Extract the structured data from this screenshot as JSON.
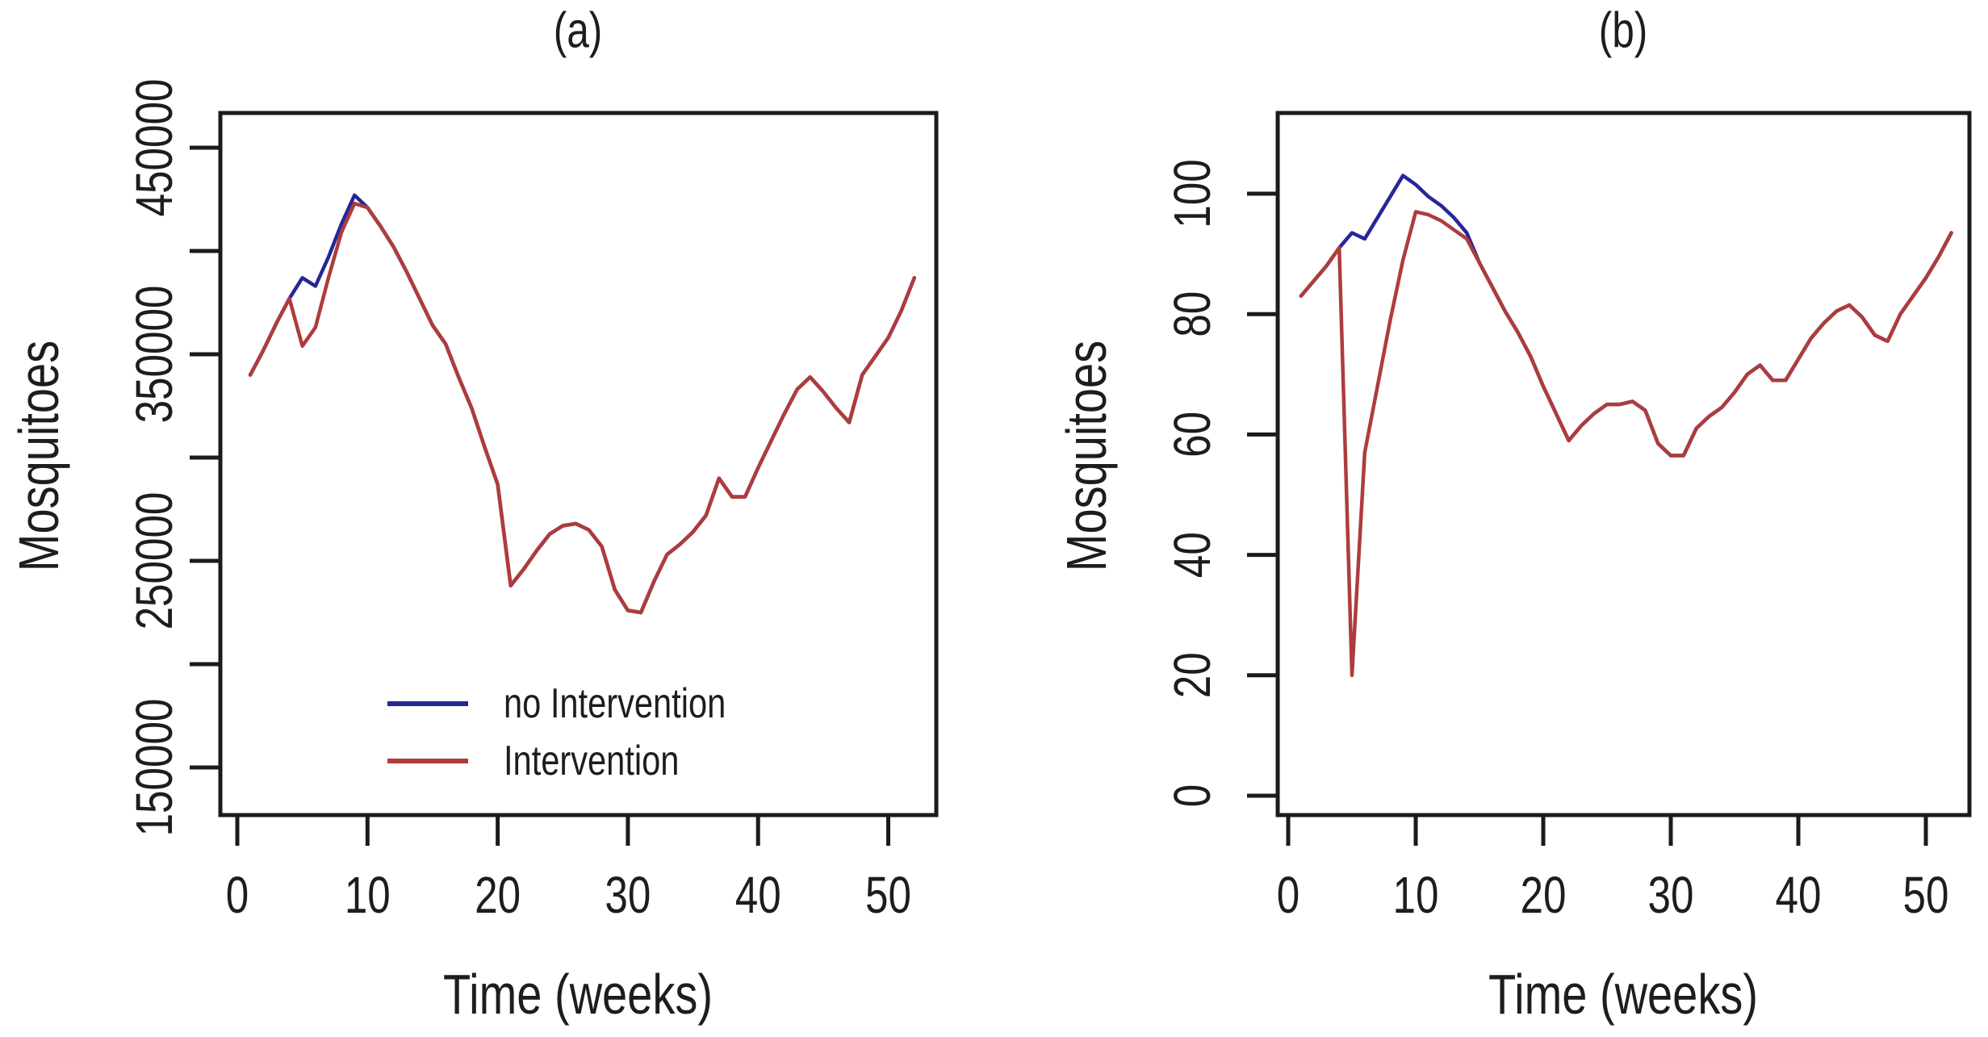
{
  "figure": {
    "background": "#ffffff",
    "axis_color": "#1b1b1b",
    "text_color": "#1d1d1d"
  },
  "chart_data": [
    {
      "type": "line",
      "panel": "a",
      "title": "(a)",
      "xlabel": "Time (weeks)",
      "ylabel": "Mosquitoes",
      "x_start_week": 1,
      "xlim": [
        0,
        53
      ],
      "ylim": [
        150000,
        470000
      ],
      "grid": "off",
      "legend_position": "inside bottom-left",
      "xticks": [
        0,
        10,
        20,
        30,
        40,
        50
      ],
      "yticks": [
        {
          "value": 450000,
          "label": "450000"
        },
        {
          "value": 400000,
          "label": ""
        },
        {
          "value": 350000,
          "label": "350000"
        },
        {
          "value": 300000,
          "label": ""
        },
        {
          "value": 250000,
          "label": "250000"
        },
        {
          "value": 200000,
          "label": ""
        },
        {
          "value": 150000,
          "label": "150000"
        }
      ],
      "series": [
        {
          "name": "no Intervention",
          "color": "#26269B",
          "values": [
            340000,
            352000,
            365000,
            377000,
            387000,
            383000,
            397000,
            413000,
            427000,
            421000,
            412000,
            402000,
            390000,
            377000,
            364000,
            355000,
            339000,
            324000,
            305000,
            287000,
            238000,
            246000,
            255000,
            263000,
            267000,
            268000,
            265000,
            257000,
            236000,
            226000,
            225000,
            240000,
            253000,
            258000,
            264000,
            272000,
            290000,
            281000,
            281000,
            295000,
            308000,
            321000,
            333000,
            339000,
            332000,
            324000,
            317000,
            340000,
            349000,
            358000,
            371000,
            387000
          ]
        },
        {
          "name": "Intervention",
          "color": "#AE3C3C",
          "values": [
            340000,
            352000,
            365000,
            377000,
            354000,
            363000,
            387000,
            409000,
            423000,
            421000,
            412000,
            402000,
            390000,
            377000,
            364000,
            355000,
            339000,
            324000,
            305000,
            287000,
            238000,
            246000,
            255000,
            263000,
            267000,
            268000,
            265000,
            257000,
            236000,
            226000,
            225000,
            240000,
            253000,
            258000,
            264000,
            272000,
            290000,
            281000,
            281000,
            295000,
            308000,
            321000,
            333000,
            339000,
            332000,
            324000,
            317000,
            340000,
            349000,
            358000,
            371000,
            387000
          ]
        }
      ]
    },
    {
      "type": "line",
      "panel": "b",
      "title": "(b)",
      "xlabel": "Time (weeks)",
      "ylabel": "Mosquitoes",
      "x_start_week": 1,
      "xlim": [
        0,
        53
      ],
      "ylim": [
        0,
        112
      ],
      "grid": "off",
      "legend_position": "none",
      "xticks": [
        0,
        10,
        20,
        30,
        40,
        50
      ],
      "yticks": [
        {
          "value": 100,
          "label": "100"
        },
        {
          "value": 80,
          "label": "80"
        },
        {
          "value": 60,
          "label": "60"
        },
        {
          "value": 40,
          "label": "40"
        },
        {
          "value": 20,
          "label": "20"
        },
        {
          "value": 0,
          "label": "0"
        }
      ],
      "series": [
        {
          "name": "no Intervention",
          "color": "#26269B",
          "values": [
            83,
            85.5,
            88,
            91,
            93.5,
            92.5,
            96,
            99.5,
            103,
            101.5,
            99.5,
            98,
            96,
            93.5,
            88.5,
            84.5,
            80.5,
            77,
            73,
            68,
            63.5,
            59,
            61.5,
            63.5,
            65,
            65,
            65.5,
            64,
            58.5,
            56.5,
            56.5,
            61,
            63,
            64.5,
            67,
            70,
            71.5,
            69,
            69,
            72.5,
            76,
            78.5,
            80.5,
            81.5,
            79.5,
            76.5,
            75.5,
            80,
            83,
            86,
            89.5,
            93.5
          ]
        },
        {
          "name": "Intervention",
          "color": "#AE3C3C",
          "values": [
            83,
            85.5,
            88,
            91,
            20,
            57,
            68,
            79,
            89,
            97,
            96.5,
            95.5,
            94,
            92.5,
            88.5,
            84.5,
            80.5,
            77,
            73,
            68,
            63.5,
            59,
            61.5,
            63.5,
            65,
            65,
            65.5,
            64,
            58.5,
            56.5,
            56.5,
            61,
            63,
            64.5,
            67,
            70,
            71.5,
            69,
            69,
            72.5,
            76,
            78.5,
            80.5,
            81.5,
            79.5,
            76.5,
            75.5,
            80,
            83,
            86,
            89.5,
            93.5
          ]
        }
      ]
    }
  ],
  "legend": {
    "items": [
      {
        "label": "no Intervention",
        "color": "#26269B"
      },
      {
        "label": "Intervention",
        "color": "#AE3C3C"
      }
    ]
  }
}
